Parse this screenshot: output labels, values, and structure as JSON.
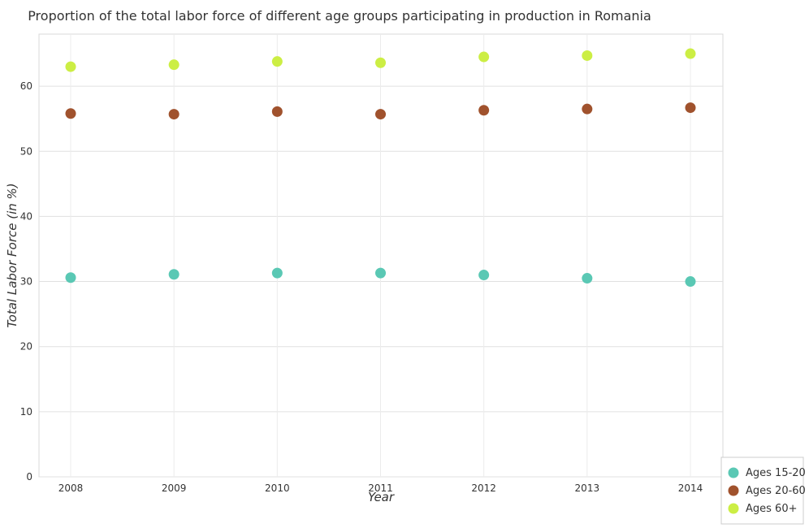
{
  "chart_data": {
    "type": "scatter",
    "title": "Proportion of the total labor force of different age groups participating in production in Romania",
    "xlabel": "Year",
    "ylabel": "Total Labor Force (in %)",
    "categories": [
      "2008",
      "2009",
      "2010",
      "2011",
      "2012",
      "2013",
      "2014"
    ],
    "ylim": [
      0,
      68
    ],
    "yticks": [
      "0",
      "10",
      "20",
      "30",
      "40",
      "50",
      "60"
    ],
    "grid": true,
    "legend_position": "bottom-right",
    "series": [
      {
        "name": "Ages 15-20",
        "color": "#5ac8b4",
        "values": [
          30.6,
          31.1,
          31.3,
          31.3,
          31.0,
          30.5,
          30.0
        ]
      },
      {
        "name": "Ages 20-60",
        "color": "#a0522d",
        "values": [
          55.8,
          55.7,
          56.1,
          55.7,
          56.3,
          56.5,
          56.7
        ]
      },
      {
        "name": "Ages 60+",
        "color": "#ccee44",
        "values": [
          63.0,
          63.3,
          63.8,
          63.6,
          64.5,
          64.7,
          65.0
        ]
      }
    ]
  }
}
